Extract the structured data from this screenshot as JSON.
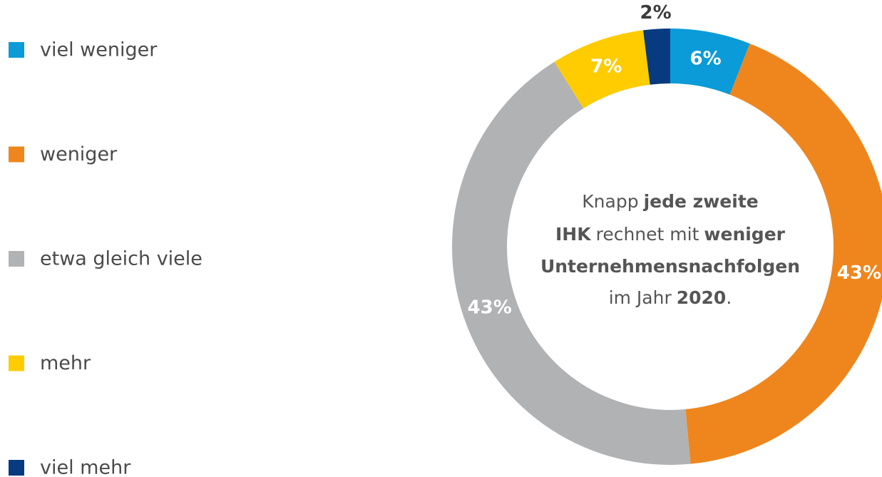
{
  "chart_data": {
    "type": "donut",
    "categories": [
      "viel weniger",
      "weniger",
      "etwa gleich viele",
      "mehr",
      "viel mehr"
    ],
    "values": [
      6,
      43,
      43,
      7,
      2
    ],
    "value_labels": [
      "6%",
      "43%",
      "43%",
      "7%",
      "2%"
    ],
    "colors": [
      "#0a9bd8",
      "#ef861d",
      "#b1b2b4",
      "#fecc00",
      "#073a7e"
    ],
    "annotation": [
      [
        {
          "text": "Knapp",
          "bold": false
        },
        {
          "text": "jede zweite",
          "bold": true
        }
      ],
      [
        {
          "text": "IHK",
          "bold": true
        },
        {
          "text": "rechnet mit",
          "bold": false
        },
        {
          "text": "weniger",
          "bold": true
        }
      ],
      [
        {
          "text": "Unternehmensnachfolgen",
          "bold": true
        }
      ],
      [
        {
          "text": "im Jahr",
          "bold": false
        },
        {
          "text": "2020",
          "bold": true
        },
        {
          "text": ".",
          "bold": false
        }
      ]
    ]
  }
}
